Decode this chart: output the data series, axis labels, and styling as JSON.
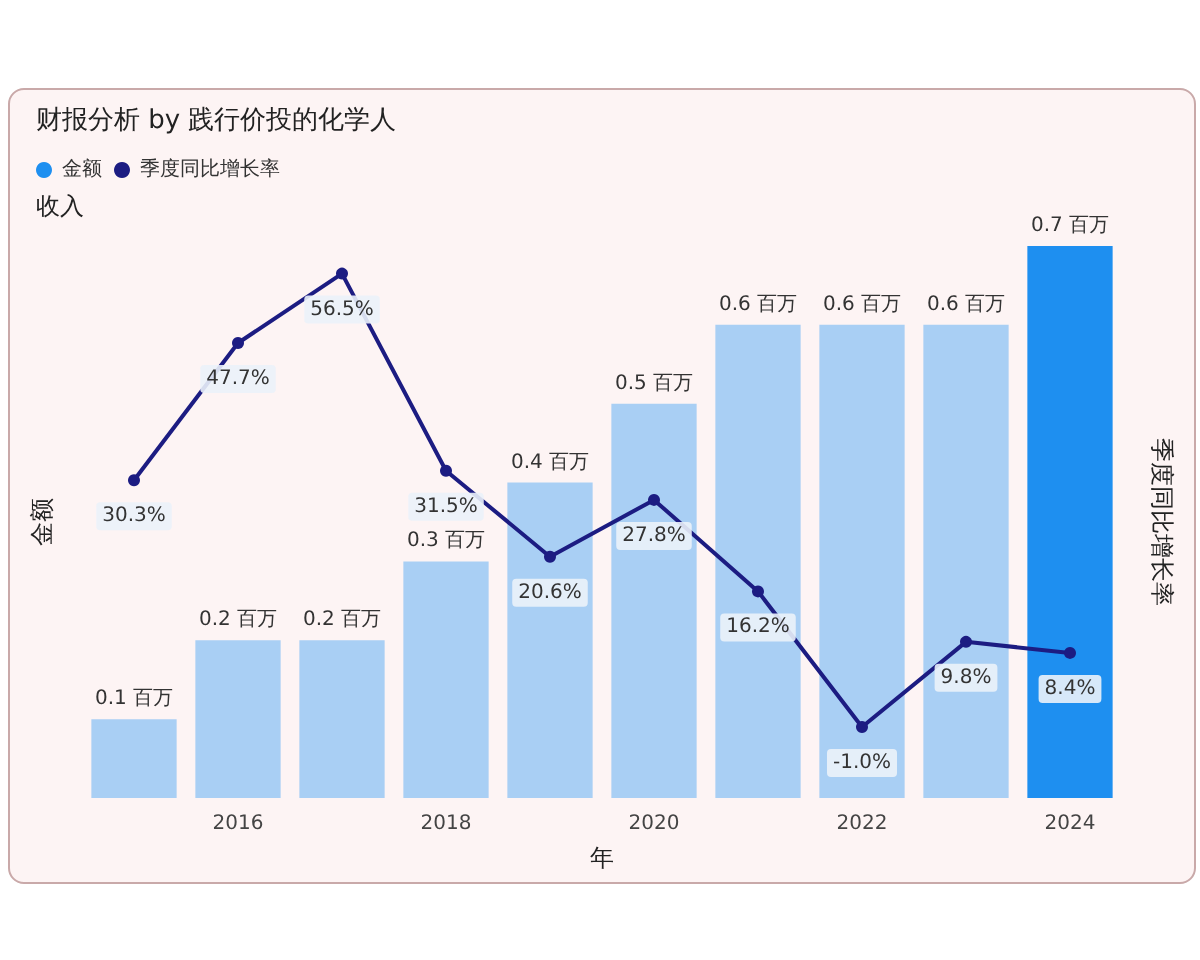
{
  "chart_data": {
    "type": "bar",
    "title": "财报分析 by 践行价投的化学人",
    "subtitle": "收入",
    "xlabel": "年",
    "ylabel": "金额",
    "y2label": "季度同比增长率",
    "categories": [
      null,
      "2016",
      null,
      "2018",
      null,
      "2020",
      null,
      "2022",
      null,
      "2024"
    ],
    "series": [
      {
        "name": "金额",
        "colors": [
          "#a9cff4",
          "#a9cff4",
          "#a9cff4",
          "#a9cff4",
          "#a9cff4",
          "#a9cff4",
          "#a9cff4",
          "#a9cff4",
          "#a9cff4",
          "#1e8ff0"
        ],
        "color": "#1e8ff0",
        "values": [
          0.1,
          0.2,
          0.2,
          0.3,
          0.4,
          0.5,
          0.6,
          0.6,
          0.6,
          0.7
        ],
        "value_labels": [
          "0.1 百万",
          "0.2 百万",
          "0.2 百万",
          "0.3 百万",
          "0.4 百万",
          "0.5 百万",
          "0.6 百万",
          "0.6 百万",
          "0.6 百万",
          "0.7 百万"
        ]
      },
      {
        "name": "季度同比增长率",
        "type": "line",
        "axis": "y2",
        "color": "#1c1c82",
        "values": [
          30.3,
          47.7,
          56.5,
          31.5,
          20.6,
          27.8,
          16.2,
          -1.0,
          9.8,
          8.4
        ],
        "value_labels": [
          "30.3%",
          "47.7%",
          "56.5%",
          "31.5%",
          "20.6%",
          "27.8%",
          "16.2%",
          "-1.0%",
          "9.8%",
          "8.4%"
        ]
      }
    ],
    "legend": "top left",
    "grid": false,
    "tick_labels": "x",
    "marker": "circle",
    "line_style": "solid"
  }
}
